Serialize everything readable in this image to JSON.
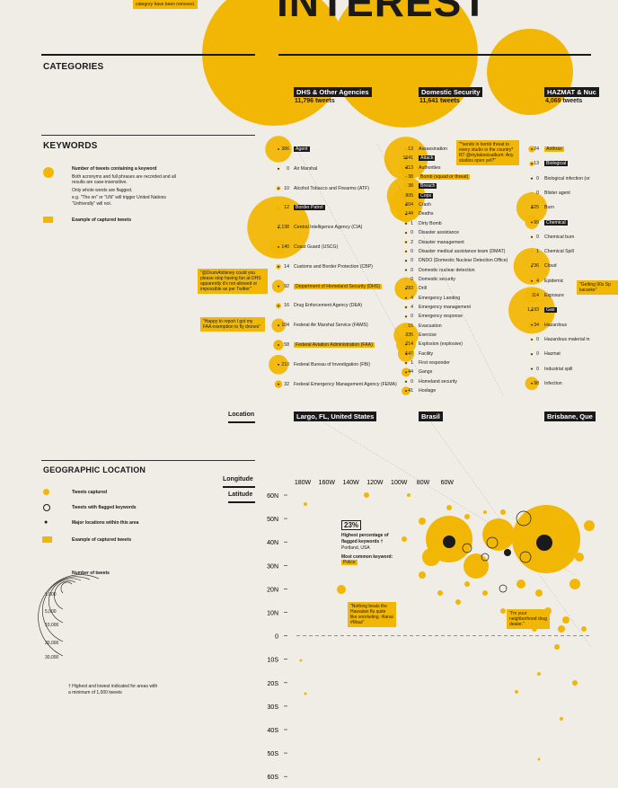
{
  "title": "INTEREST",
  "intro_fragment": "category have been removed.",
  "categories_header": "CATEGORIES",
  "keywords_header": "KEYWORDS",
  "geo_header": "GEOGRAPHIC LOCATION",
  "location_label": "Location",
  "longitude_label": "Longitude",
  "latitude_label": "Latitude",
  "keyword_legend": {
    "count_title": "Number of tweets containing a keyword",
    "count_text1": "Both acronyms and full phrases are recorded and all results are case-insensitive.",
    "count_text2": "Only whole words are flagged.",
    "count_text3": "e.g. \"The on\" or \"UN\" will trigger United Nations \"Unfriendly\" will not.",
    "example_label": "Example of captured tweets"
  },
  "geo_legend": {
    "captured": "Tweets captured",
    "flagged": "Tweets with flagged keywords",
    "major": "Major locations within this area",
    "example": "Example of captured tweets",
    "num_title": "Number of tweets",
    "scale": [
      "1,000",
      "5,000",
      "10,000",
      "20,000",
      "30,000"
    ],
    "footnote": "† Highest and lowest indicated for areas with a minimum of 1,000 tweets"
  },
  "categories": [
    {
      "name": "DHS & Other Agencies",
      "count": "11,796 tweets"
    },
    {
      "name": "Domestic Security",
      "count": "11,641 tweets"
    },
    {
      "name": "HAZMAT & Nuc",
      "count": "4,069 tweets"
    }
  ],
  "locations": [
    "Largo, FL, United States",
    "Brasil",
    "Brisbane, Que"
  ],
  "chart_data": {
    "type": "scatter",
    "title": "",
    "xlabel": "Longitude",
    "ylabel": "Latitude",
    "x_ticks": [
      "180W",
      "160W",
      "140W",
      "120W",
      "100W",
      "80W",
      "60W"
    ],
    "y_ticks": [
      "60N",
      "50N",
      "40N",
      "30N",
      "20N",
      "10N",
      "0",
      "10S",
      "20S",
      "30S",
      "40S",
      "50S",
      "60S"
    ],
    "callout": {
      "percent": "23%",
      "label": "Highest percentage of flagged keywords †",
      "place": "Portland, USA",
      "kw_label": "Most common keyword:",
      "kw": "Police"
    },
    "tweets": [
      "\"Nothing beats the Hawaiian flu quite like snorkeling. #lanai #Maui\"",
      "\"I'm your neighborhood drug dealer.\""
    ]
  },
  "kw_col1": [
    {
      "n": "386",
      "k": "Agent",
      "hl": true
    },
    {
      "n": "0",
      "k": "Air Marshal"
    },
    {
      "n": "10",
      "k": "Alcohol Tobacco and Firearms (ATF)"
    },
    {
      "n": "12",
      "k": "Border Patrol",
      "hl": true
    },
    {
      "n": "2,138",
      "k": "Central Intelligence Agency (CIA)"
    },
    {
      "n": "140",
      "k": "Coast Guard (USCG)"
    },
    {
      "n": "14",
      "k": "Customs and Border Protection (CBP)"
    },
    {
      "n": "92",
      "k": "Department of Homeland Security (DHS)",
      "y": true
    },
    {
      "n": "16",
      "k": "Drug Enforcement Agency (DEA)"
    },
    {
      "n": "104",
      "k": "Federal Air Marshal Service (FAMS)"
    },
    {
      "n": "58",
      "k": "Federal Aviation Administration (FAA)",
      "y": true
    },
    {
      "n": "210",
      "k": "Federal Bureau of Investigation (FBI)"
    },
    {
      "n": "32",
      "k": "Federal Emergency Management Agency (FEMA)"
    }
  ],
  "kw_col2": [
    {
      "n": "13",
      "k": "Assassination"
    },
    {
      "n": "1041",
      "k": "Attack",
      "hl": true
    },
    {
      "n": "113",
      "k": "Authorities"
    },
    {
      "n": "38",
      "k": "Bomb (squad or threat)",
      "y": true
    },
    {
      "n": "38",
      "k": "Breach",
      "hl": true
    },
    {
      "n": "805",
      "k": "Cops",
      "hl": true
    },
    {
      "n": "604",
      "k": "Crash"
    },
    {
      "n": "144",
      "k": "Deaths"
    },
    {
      "n": "1",
      "k": "Dirty Bomb"
    },
    {
      "n": "0",
      "k": "Disaster assistance"
    },
    {
      "n": "2",
      "k": "Disaster management"
    },
    {
      "n": "0",
      "k": "Disaster medical assistance team (DMAT)"
    },
    {
      "n": "0",
      "k": "DNDO (Domestic Nuclear Detection Office)"
    },
    {
      "n": "0",
      "k": "Domestic nuclear detection"
    },
    {
      "n": "0",
      "k": "Domestic security"
    },
    {
      "n": "283",
      "k": "Drill"
    },
    {
      "n": "4",
      "k": "Emergency Landing"
    },
    {
      "n": "4",
      "k": "Emergency management"
    },
    {
      "n": "0",
      "k": "Emergency response"
    },
    {
      "n": "15",
      "k": "Evacuation"
    },
    {
      "n": "335",
      "k": "Exercise"
    },
    {
      "n": "214",
      "k": "Explosion (explosive)"
    },
    {
      "n": "147",
      "k": "Facility"
    },
    {
      "n": "1",
      "k": "First responder"
    },
    {
      "n": "44",
      "k": "Gangs"
    },
    {
      "n": "0",
      "k": "Homeland security"
    },
    {
      "n": "41",
      "k": "Hostage"
    }
  ],
  "kw_col3": [
    {
      "n": "24",
      "k": "Anthrax",
      "y": true
    },
    {
      "n": "13",
      "k": "Biological",
      "hl": true
    },
    {
      "n": "0",
      "k": "Biological infection (or"
    },
    {
      "n": "0",
      "k": "Blister agent"
    },
    {
      "n": "525",
      "k": "Burn"
    },
    {
      "n": "99",
      "k": "Chemical",
      "hl": true
    },
    {
      "n": "0",
      "k": "Chemical burn"
    },
    {
      "n": "1",
      "k": "Chemical Spill"
    },
    {
      "n": "736",
      "k": "Cloud"
    },
    {
      "n": "4",
      "k": "Epidemic"
    },
    {
      "n": "114",
      "k": "Exposure"
    },
    {
      "n": "1,193",
      "k": "Gas",
      "hl": true
    },
    {
      "n": "34",
      "k": "Hazardous"
    },
    {
      "n": "0",
      "k": "Hazardous material in"
    },
    {
      "n": "0",
      "k": "Hazmat"
    },
    {
      "n": "0",
      "k": "Industrial spill"
    },
    {
      "n": "98",
      "k": "Infection"
    }
  ],
  "tweets_kw": [
    "\"@DrumAtdisney could you please stop having fun at DHS apparently it's not allowed or impossible as per Twitter\"",
    "\"Happy to report I got my FAA exemption to fly drones\"",
    "\"*sends in bomb threat to every studio in the country* RT @mytabooisalbum: Any studios open yet?\"",
    "\"Getting 90s Sp karaoke\""
  ]
}
